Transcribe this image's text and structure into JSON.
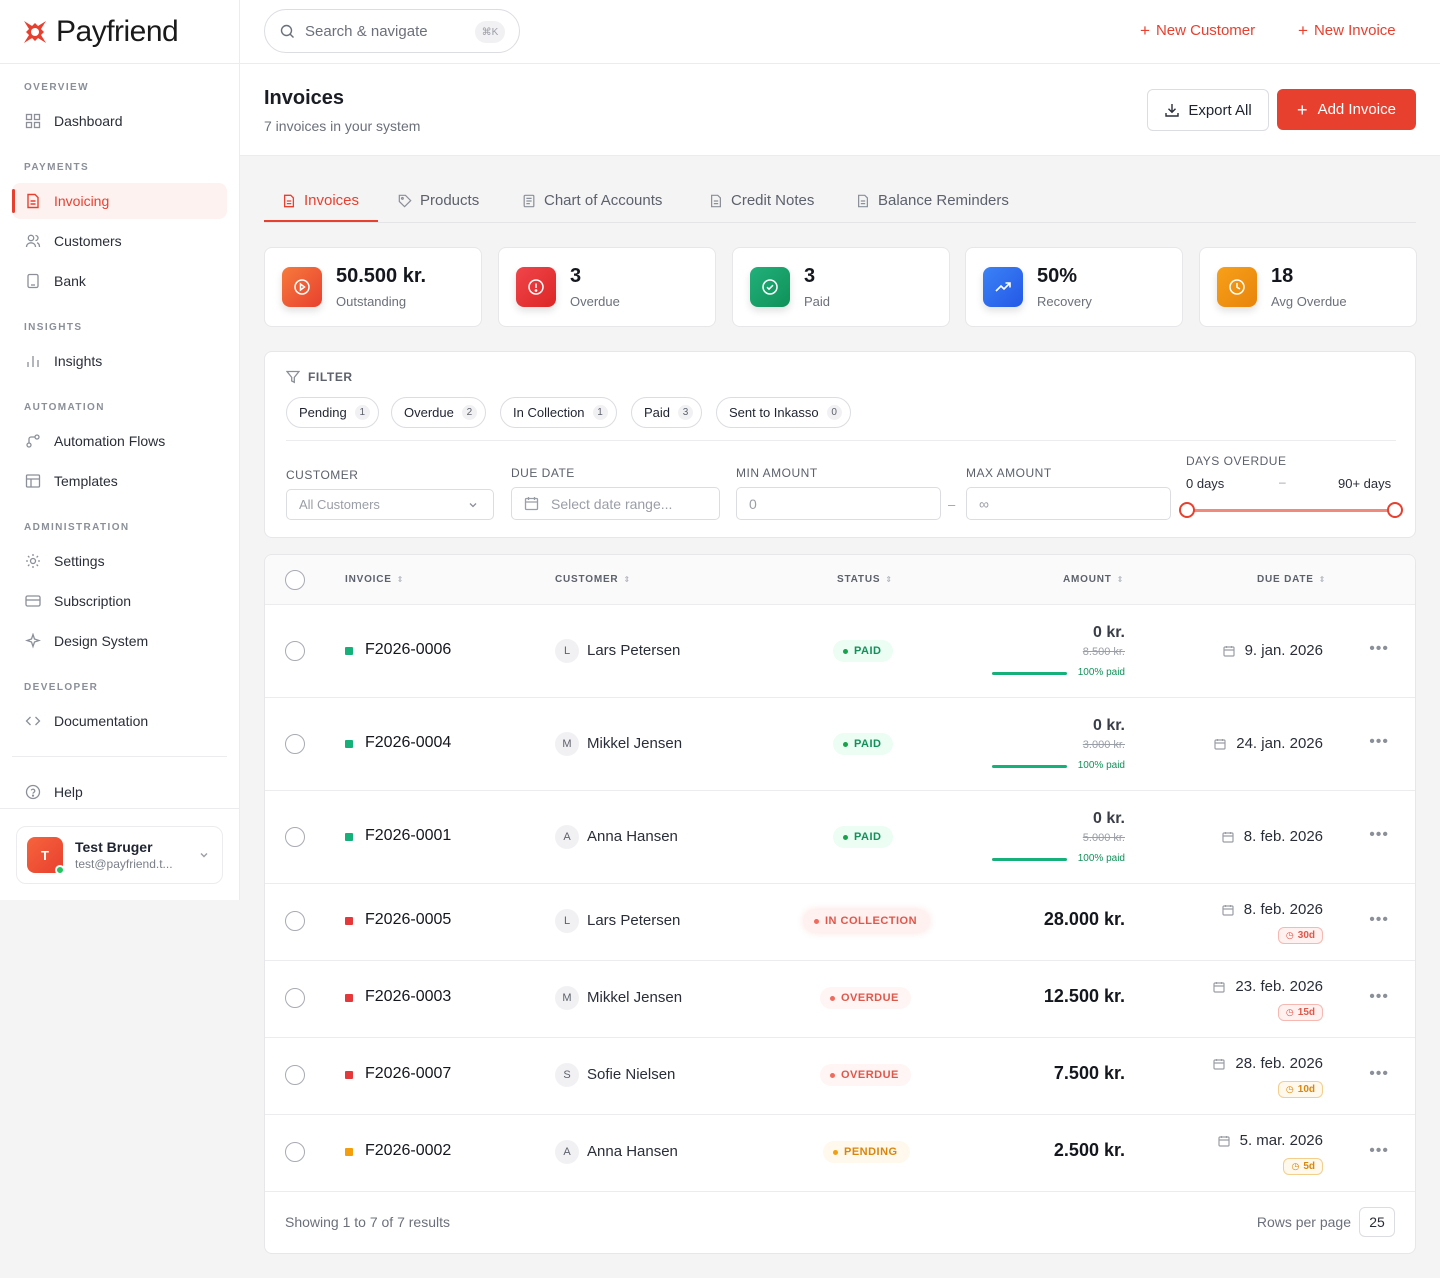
{
  "app": {
    "name": "Payfriend"
  },
  "sidebar": {
    "sections": [
      {
        "title": "OVERVIEW",
        "items": [
          {
            "label": "Dashboard",
            "icon": "grid-icon"
          }
        ]
      },
      {
        "title": "PAYMENTS",
        "items": [
          {
            "label": "Invoicing",
            "icon": "file-icon",
            "active": true
          },
          {
            "label": "Customers",
            "icon": "users-icon"
          },
          {
            "label": "Bank",
            "icon": "bank-icon"
          }
        ]
      },
      {
        "title": "INSIGHTS",
        "items": [
          {
            "label": "Insights",
            "icon": "bar-chart-icon"
          }
        ]
      },
      {
        "title": "AUTOMATION",
        "items": [
          {
            "label": "Automation Flows",
            "icon": "flow-icon"
          },
          {
            "label": "Templates",
            "icon": "template-icon"
          }
        ]
      },
      {
        "title": "ADMINISTRATION",
        "items": [
          {
            "label": "Settings",
            "icon": "gear-icon"
          },
          {
            "label": "Subscription",
            "icon": "card-icon"
          },
          {
            "label": "Design System",
            "icon": "sparkle-icon"
          }
        ]
      },
      {
        "title": "DEVELOPER",
        "items": [
          {
            "label": "Documentation",
            "icon": "code-icon"
          }
        ]
      }
    ],
    "help": "Help",
    "user": {
      "initial": "T",
      "name": "Test Bruger",
      "email": "test@payfriend.t..."
    }
  },
  "topbar": {
    "search_placeholder": "Search & navigate",
    "search_shortcut": "⌘K",
    "new_customer": "New Customer",
    "new_invoice": "New Invoice"
  },
  "page": {
    "title": "Invoices",
    "subtitle": "7 invoices in your system",
    "export_label": "Export All",
    "add_label": "Add Invoice"
  },
  "tabs": [
    {
      "label": "Invoices",
      "active": true
    },
    {
      "label": "Products"
    },
    {
      "label": "Chart of Accounts"
    },
    {
      "label": "Credit Notes"
    },
    {
      "label": "Balance Reminders"
    }
  ],
  "stats": [
    {
      "value": "50.500 kr.",
      "label": "Outstanding",
      "color": "#f15a32"
    },
    {
      "value": "3",
      "label": "Overdue",
      "color": "#e8323a"
    },
    {
      "value": "3",
      "label": "Paid",
      "color": "#16a367"
    },
    {
      "value": "50%",
      "label": "Recovery",
      "color": "#2f6cf0"
    },
    {
      "value": "18",
      "label": "Avg Overdue",
      "color": "#f08c0c"
    }
  ],
  "filter": {
    "title": "FILTER",
    "chips": [
      {
        "label": "Pending",
        "count": "1"
      },
      {
        "label": "Overdue",
        "count": "2"
      },
      {
        "label": "In Collection",
        "count": "1"
      },
      {
        "label": "Paid",
        "count": "3"
      },
      {
        "label": "Sent to Inkasso",
        "count": "0"
      }
    ],
    "customer_label": "CUSTOMER",
    "customer_value": "All Customers",
    "due_label": "DUE DATE",
    "due_placeholder": "Select date range...",
    "min_label": "MIN AMOUNT",
    "min_placeholder": "0",
    "max_label": "MAX AMOUNT",
    "max_placeholder": "∞",
    "days_label": "DAYS OVERDUE",
    "days_min": "0 days",
    "days_max": "90+ days",
    "dash": "–"
  },
  "table": {
    "headers": {
      "invoice": "INVOICE",
      "customer": "CUSTOMER",
      "status": "STATUS",
      "amount": "AMOUNT",
      "due": "DUE DATE"
    },
    "rows": [
      {
        "invoice": "F2026-0006",
        "initial": "L",
        "customer": "Lars Petersen",
        "status": "PAID",
        "amount": "0 kr.",
        "original": "8.500 kr.",
        "paid_pct": "100% paid",
        "due": "9. jan. 2026",
        "days": ""
      },
      {
        "invoice": "F2026-0004",
        "initial": "M",
        "customer": "Mikkel Jensen",
        "status": "PAID",
        "amount": "0 kr.",
        "original": "3.000 kr.",
        "paid_pct": "100% paid",
        "due": "24. jan. 2026",
        "days": ""
      },
      {
        "invoice": "F2026-0001",
        "initial": "A",
        "customer": "Anna Hansen",
        "status": "PAID",
        "amount": "0 kr.",
        "original": "5.000 kr.",
        "paid_pct": "100% paid",
        "due": "8. feb. 2026",
        "days": ""
      },
      {
        "invoice": "F2026-0005",
        "initial": "L",
        "customer": "Lars Petersen",
        "status": "IN COLLECTION",
        "amount": "28.000 kr.",
        "due": "8. feb. 2026",
        "days": "30d"
      },
      {
        "invoice": "F2026-0003",
        "initial": "M",
        "customer": "Mikkel Jensen",
        "status": "OVERDUE",
        "amount": "12.500 kr.",
        "due": "23. feb. 2026",
        "days": "15d"
      },
      {
        "invoice": "F2026-0007",
        "initial": "S",
        "customer": "Sofie Nielsen",
        "status": "OVERDUE",
        "amount": "7.500 kr.",
        "due": "28. feb. 2026",
        "days": "10d"
      },
      {
        "invoice": "F2026-0002",
        "initial": "A",
        "customer": "Anna Hansen",
        "status": "PENDING",
        "amount": "2.500 kr.",
        "due": "5. mar. 2026",
        "days": "5d"
      }
    ],
    "footer": "Showing 1 to 7 of 7 results",
    "rows_per_page_label": "Rows per page",
    "rows_per_page": "25"
  }
}
